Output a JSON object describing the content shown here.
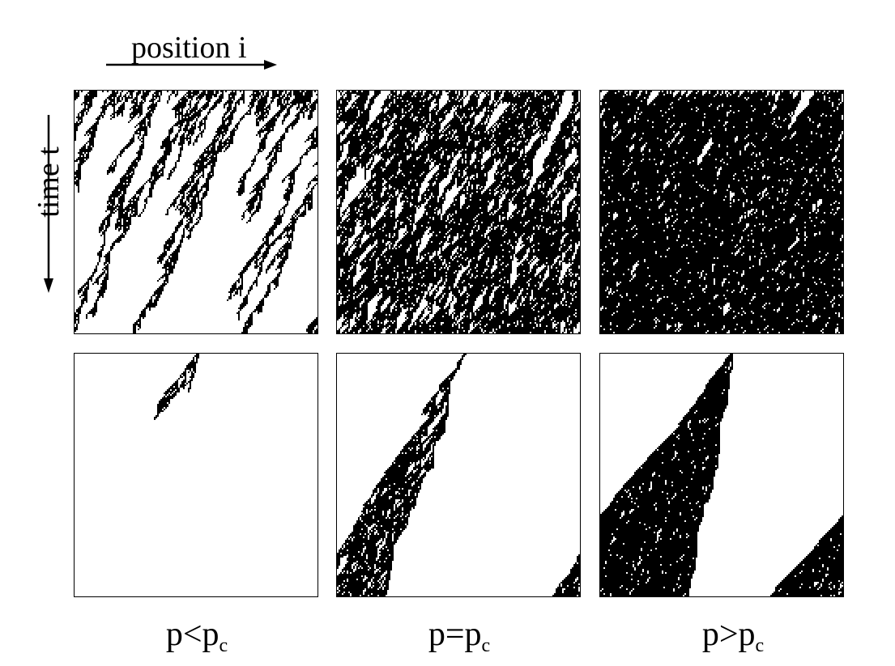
{
  "axes": {
    "position_label": "position i",
    "time_label": "time t"
  },
  "columns": [
    {
      "p": "p",
      "relation": "<",
      "pc": "p",
      "pc_sub": "c"
    },
    {
      "p": "p",
      "relation": "=",
      "pc": "p",
      "pc_sub": "c"
    },
    {
      "p": "p",
      "relation": ">",
      "pc": "p",
      "pc_sub": "c"
    }
  ],
  "panels": [
    {
      "row": "random-initial",
      "regime": "subcritical"
    },
    {
      "row": "random-initial",
      "regime": "critical"
    },
    {
      "row": "random-initial",
      "regime": "supercritical"
    },
    {
      "row": "single-seed",
      "regime": "subcritical"
    },
    {
      "row": "single-seed",
      "regime": "critical"
    },
    {
      "row": "single-seed",
      "regime": "supercritical"
    }
  ]
}
